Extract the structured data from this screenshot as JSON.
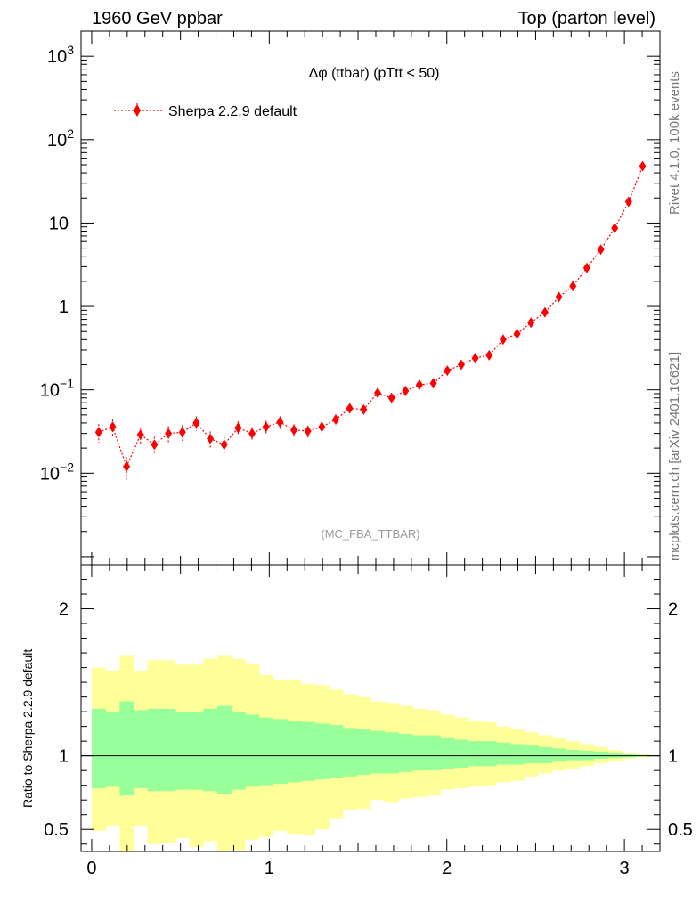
{
  "header": {
    "left_title": "1960 GeV ppbar",
    "right_title": "Top (parton level)"
  },
  "side_labels": {
    "rivet": "Rivet 4.1.0,  100k events",
    "mcplots": "mcplots.cern.ch [arXiv:2401.10621]"
  },
  "chart_data": {
    "type": "scatter",
    "title": "Δφ (ttbar) (pTtt < 50)",
    "watermark": "(MC_FBA_TTBAR)",
    "xlim": [
      -0.06,
      3.2
    ],
    "ylim": [
      0.0008,
      2000
    ],
    "yscale": "log",
    "legend": {
      "label": "Sherpa 2.2.9 default",
      "position": "top-left",
      "color": "#ff0000"
    },
    "yticks": [
      {
        "value": 0.01,
        "base": "10",
        "exp": "−2"
      },
      {
        "value": 0.1,
        "base": "10",
        "exp": "−1"
      },
      {
        "value": 1,
        "base": "1",
        "exp": ""
      },
      {
        "value": 10,
        "base": "10",
        "exp": ""
      },
      {
        "value": 100,
        "base": "10",
        "exp": "2"
      },
      {
        "value": 1000,
        "base": "10",
        "exp": "3"
      }
    ],
    "xticks": [
      "0",
      "1",
      "2",
      "3"
    ],
    "series": [
      {
        "name": "Sherpa 2.2.9 default",
        "color": "#ff0000",
        "x": [
          0.0393,
          0.1178,
          0.1963,
          0.2749,
          0.3534,
          0.432,
          0.5105,
          0.589,
          0.6676,
          0.7461,
          0.8247,
          0.9032,
          0.9817,
          1.0603,
          1.1388,
          1.2174,
          1.2959,
          1.3744,
          1.453,
          1.5315,
          1.6101,
          1.6886,
          1.7671,
          1.8457,
          1.9242,
          2.0028,
          2.0813,
          2.1598,
          2.2384,
          2.3169,
          2.3955,
          2.474,
          2.5525,
          2.6311,
          2.7096,
          2.7882,
          2.8667,
          2.9452,
          3.0238,
          3.1023
        ],
        "y": [
          0.031,
          0.036,
          0.012,
          0.029,
          0.022,
          0.03,
          0.031,
          0.04,
          0.026,
          0.022,
          0.035,
          0.03,
          0.036,
          0.041,
          0.033,
          0.032,
          0.036,
          0.044,
          0.06,
          0.058,
          0.092,
          0.08,
          0.097,
          0.115,
          0.12,
          0.17,
          0.2,
          0.24,
          0.26,
          0.4,
          0.47,
          0.64,
          0.85,
          1.3,
          1.75,
          2.9,
          4.8,
          8.7,
          18.0,
          48.0
        ],
        "err_rel": [
          0.25,
          0.22,
          0.3,
          0.22,
          0.24,
          0.22,
          0.21,
          0.2,
          0.22,
          0.24,
          0.19,
          0.19,
          0.18,
          0.17,
          0.17,
          0.16,
          0.16,
          0.15,
          0.13,
          0.13,
          0.11,
          0.11,
          0.1,
          0.09,
          0.09,
          0.08,
          0.07,
          0.07,
          0.06,
          0.05,
          0.05,
          0.04,
          0.04,
          0.03,
          0.03,
          0.025,
          0.02,
          0.015,
          0.01,
          0.006
        ]
      }
    ],
    "ratio": {
      "ylabel": "Ratio to Sherpa 2.2.9 default",
      "ylim": [
        0.35,
        2.3
      ],
      "yticks": [
        "0.5",
        "1",
        "2"
      ],
      "yellow_band_hi": [
        1.6,
        1.58,
        1.68,
        1.58,
        1.65,
        1.65,
        1.62,
        1.62,
        1.66,
        1.68,
        1.66,
        1.63,
        1.55,
        1.52,
        1.52,
        1.49,
        1.48,
        1.45,
        1.42,
        1.4,
        1.37,
        1.36,
        1.34,
        1.32,
        1.31,
        1.28,
        1.26,
        1.24,
        1.23,
        1.2,
        1.18,
        1.16,
        1.14,
        1.12,
        1.1,
        1.08,
        1.06,
        1.04,
        1.02,
        1.01
      ],
      "yellow_band_lo": [
        0.49,
        0.52,
        0.34,
        0.52,
        0.4,
        0.41,
        0.44,
        0.38,
        0.42,
        0.34,
        0.36,
        0.43,
        0.45,
        0.49,
        0.47,
        0.46,
        0.5,
        0.57,
        0.63,
        0.64,
        0.7,
        0.68,
        0.71,
        0.72,
        0.73,
        0.77,
        0.78,
        0.79,
        0.8,
        0.82,
        0.83,
        0.86,
        0.88,
        0.9,
        0.91,
        0.93,
        0.95,
        0.96,
        0.98,
        0.99
      ],
      "green_band_hi": [
        1.32,
        1.3,
        1.37,
        1.31,
        1.32,
        1.32,
        1.3,
        1.3,
        1.32,
        1.34,
        1.3,
        1.28,
        1.26,
        1.25,
        1.24,
        1.23,
        1.22,
        1.21,
        1.19,
        1.18,
        1.17,
        1.16,
        1.15,
        1.14,
        1.14,
        1.12,
        1.11,
        1.1,
        1.1,
        1.09,
        1.08,
        1.07,
        1.06,
        1.05,
        1.04,
        1.035,
        1.03,
        1.02,
        1.01,
        1.005
      ],
      "green_band_lo": [
        0.78,
        0.79,
        0.73,
        0.78,
        0.76,
        0.76,
        0.77,
        0.77,
        0.76,
        0.74,
        0.77,
        0.79,
        0.8,
        0.81,
        0.82,
        0.83,
        0.84,
        0.85,
        0.86,
        0.87,
        0.88,
        0.88,
        0.89,
        0.9,
        0.9,
        0.91,
        0.92,
        0.93,
        0.93,
        0.94,
        0.94,
        0.95,
        0.95,
        0.96,
        0.97,
        0.97,
        0.98,
        0.985,
        0.99,
        0.995
      ],
      "yellow_color": "#ffff99",
      "green_color": "#99ff99"
    }
  }
}
